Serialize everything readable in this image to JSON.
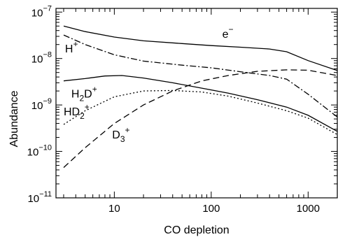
{
  "chart_data": {
    "type": "line",
    "title": "",
    "xlabel": "CO depletion",
    "ylabel": "Abundance",
    "x_scale": "log",
    "y_scale": "log",
    "xlim": [
      2.5,
      2000
    ],
    "ylim": [
      1e-11,
      1.2e-07
    ],
    "grid": false,
    "x_ticks": [
      {
        "value": 10,
        "label": "10"
      },
      {
        "value": 100,
        "label": "100"
      },
      {
        "value": 1000,
        "label": "1000"
      }
    ],
    "y_ticks": [
      {
        "value": 1e-11,
        "base": "10",
        "exp": "−11"
      },
      {
        "value": 1e-10,
        "base": "10",
        "exp": "−10"
      },
      {
        "value": 1e-09,
        "base": "10",
        "exp": "−9"
      },
      {
        "value": 1e-08,
        "base": "10",
        "exp": "−8"
      },
      {
        "value": 1e-07,
        "base": "10",
        "exp": "−7"
      }
    ],
    "series": [
      {
        "name": "e⁻",
        "label_main": "e",
        "label_sup": "−",
        "label_sub": "",
        "label_x": 130,
        "label_y": 2.8e-08,
        "dash": "",
        "points": [
          [
            3,
            5e-08
          ],
          [
            5,
            3.8e-08
          ],
          [
            10,
            2.9e-08
          ],
          [
            20,
            2.4e-08
          ],
          [
            50,
            2.1e-08
          ],
          [
            100,
            1.9e-08
          ],
          [
            200,
            1.75e-08
          ],
          [
            400,
            1.6e-08
          ],
          [
            600,
            1.4e-08
          ],
          [
            1000,
            9e-09
          ],
          [
            2000,
            5.5e-09
          ]
        ]
      },
      {
        "name": "H⁺",
        "label_main": "H",
        "label_sup": "+",
        "label_sub": "",
        "label_x": 3.1,
        "label_y": 1.35e-08,
        "dash": "9,3,2,3",
        "points": [
          [
            3,
            3.2e-08
          ],
          [
            5,
            2e-08
          ],
          [
            10,
            1.2e-08
          ],
          [
            20,
            8.8e-09
          ],
          [
            50,
            7.2e-09
          ],
          [
            100,
            6.3e-09
          ],
          [
            200,
            5.2e-09
          ],
          [
            400,
            4.3e-09
          ],
          [
            600,
            3.6e-09
          ],
          [
            1000,
            1.7e-09
          ],
          [
            2000,
            5.5e-10
          ]
        ]
      },
      {
        "name": "H2D⁺",
        "label_main": "H",
        "label_sub": "2",
        "label_tail": "D",
        "label_sup": "+",
        "label_x": 3.6,
        "label_y": 1.45e-09,
        "dash": "",
        "points": [
          [
            3,
            3.3e-09
          ],
          [
            5,
            3.7e-09
          ],
          [
            8,
            4.2e-09
          ],
          [
            12,
            4.3e-09
          ],
          [
            20,
            3.8e-09
          ],
          [
            40,
            3e-09
          ],
          [
            80,
            2.3e-09
          ],
          [
            150,
            1.8e-09
          ],
          [
            300,
            1.3e-09
          ],
          [
            600,
            9e-10
          ],
          [
            1000,
            6e-10
          ],
          [
            2000,
            2.7e-10
          ]
        ]
      },
      {
        "name": "HD2⁺",
        "label_main": "HD",
        "label_sub": "2",
        "label_tail": "",
        "label_sup": "+",
        "label_x": 3.0,
        "label_y": 6e-10,
        "dash": "2,3",
        "points": [
          [
            3,
            3.8e-10
          ],
          [
            5,
            7.5e-10
          ],
          [
            10,
            1.5e-09
          ],
          [
            20,
            2e-09
          ],
          [
            40,
            2.05e-09
          ],
          [
            80,
            1.9e-09
          ],
          [
            150,
            1.55e-09
          ],
          [
            300,
            1.1e-09
          ],
          [
            600,
            7.5e-10
          ],
          [
            1000,
            5.2e-10
          ],
          [
            2000,
            2.3e-10
          ]
        ]
      },
      {
        "name": "D3⁺",
        "label_main": "D",
        "label_sub": "3",
        "label_tail": "",
        "label_sup": "+",
        "label_x": 9.5,
        "label_y": 1.9e-10,
        "dash": "9,5",
        "points": [
          [
            3,
            4.5e-11
          ],
          [
            5,
            1.2e-10
          ],
          [
            10,
            4e-10
          ],
          [
            20,
            1e-09
          ],
          [
            40,
            2e-09
          ],
          [
            80,
            3.3e-09
          ],
          [
            150,
            4.3e-09
          ],
          [
            300,
            5.3e-09
          ],
          [
            600,
            5.7e-09
          ],
          [
            1000,
            5.6e-09
          ],
          [
            2000,
            4.3e-09
          ]
        ]
      }
    ]
  }
}
